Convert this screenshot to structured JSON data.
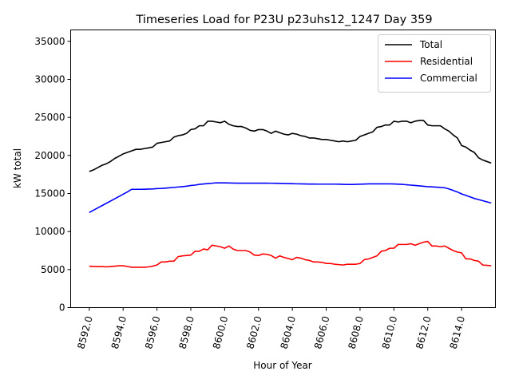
{
  "chart_data": {
    "type": "line",
    "title": "Timeseries Load for P23U p23uhs12_1247  Day 359",
    "xlabel": "Hour of Year",
    "ylabel": "kW total",
    "xlim": [
      8590.9,
      8616.0
    ],
    "ylim": [
      0,
      36500
    ],
    "xticks": [
      8592,
      8594,
      8596,
      8598,
      8600,
      8602,
      8604,
      8606,
      8608,
      8610,
      8612,
      8614
    ],
    "xtick_labels": [
      "8592.0",
      "8594.0",
      "8596.0",
      "8598.0",
      "8600.0",
      "8602.0",
      "8604.0",
      "8606.0",
      "8608.0",
      "8610.0",
      "8612.0",
      "8614.0"
    ],
    "yticks": [
      0,
      5000,
      10000,
      15000,
      20000,
      25000,
      30000,
      35000
    ],
    "ytick_labels": [
      "0",
      "5000",
      "10000",
      "15000",
      "20000",
      "25000",
      "30000",
      "35000"
    ],
    "legend_position": "top-right",
    "x": [
      8592.0,
      8592.25,
      8592.5,
      8592.75,
      8593.0,
      8593.25,
      8593.5,
      8593.75,
      8594.0,
      8594.25,
      8594.5,
      8594.75,
      8595.0,
      8595.25,
      8595.5,
      8595.75,
      8596.0,
      8596.25,
      8596.5,
      8596.75,
      8597.0,
      8597.25,
      8597.5,
      8597.75,
      8598.0,
      8598.25,
      8598.5,
      8598.75,
      8599.0,
      8599.25,
      8599.5,
      8599.75,
      8600.0,
      8600.25,
      8600.5,
      8600.75,
      8601.0,
      8601.25,
      8601.5,
      8601.75,
      8602.0,
      8602.25,
      8602.5,
      8602.75,
      8603.0,
      8603.25,
      8603.5,
      8603.75,
      8604.0,
      8604.25,
      8604.5,
      8604.75,
      8605.0,
      8605.25,
      8605.5,
      8605.75,
      8606.0,
      8606.25,
      8606.5,
      8606.75,
      8607.0,
      8607.25,
      8607.5,
      8607.75,
      8608.0,
      8608.25,
      8608.5,
      8608.75,
      8609.0,
      8609.25,
      8609.5,
      8609.75,
      8610.0,
      8610.25,
      8610.5,
      8610.75,
      8611.0,
      8611.25,
      8611.5,
      8611.75,
      8612.0,
      8612.25,
      8612.5,
      8612.75,
      8613.0,
      8613.25,
      8613.5,
      8613.75,
      8614.0,
      8614.25,
      8614.5,
      8614.75,
      8615.0,
      8615.25,
      8615.5,
      8615.75
    ],
    "series": [
      {
        "name": "Total",
        "color": "#000000",
        "values": [
          17900,
          18100,
          18400,
          18700,
          18900,
          19200,
          19600,
          19900,
          20200,
          20400,
          20600,
          20800,
          20800,
          20900,
          21000,
          21100,
          21600,
          21700,
          21800,
          21900,
          22400,
          22600,
          22700,
          22900,
          23400,
          23500,
          23900,
          23900,
          24500,
          24500,
          24400,
          24300,
          24500,
          24100,
          23900,
          23800,
          23800,
          23600,
          23300,
          23200,
          23400,
          23400,
          23200,
          22900,
          23200,
          23000,
          22800,
          22700,
          22900,
          22800,
          22600,
          22500,
          22300,
          22300,
          22200,
          22100,
          22100,
          22000,
          21900,
          21800,
          21900,
          21800,
          21900,
          22000,
          22500,
          22700,
          22900,
          23100,
          23700,
          23800,
          24000,
          24000,
          24500,
          24400,
          24500,
          24500,
          24300,
          24500,
          24600,
          24600,
          24000,
          23900,
          23900,
          23900,
          23500,
          23200,
          22700,
          22300,
          21300,
          21100,
          20700,
          20400,
          19700,
          19400,
          19200,
          19000
        ]
      },
      {
        "name": "Residential",
        "color": "#ff0000",
        "values": [
          5450,
          5400,
          5400,
          5400,
          5350,
          5400,
          5450,
          5500,
          5500,
          5400,
          5300,
          5300,
          5300,
          5300,
          5350,
          5450,
          5600,
          6000,
          6000,
          6100,
          6100,
          6700,
          6800,
          6850,
          6900,
          7400,
          7400,
          7700,
          7600,
          8200,
          8100,
          8000,
          7800,
          8100,
          7700,
          7500,
          7500,
          7500,
          7300,
          6900,
          6850,
          7050,
          7000,
          6850,
          6500,
          6800,
          6600,
          6450,
          6300,
          6600,
          6500,
          6300,
          6200,
          6000,
          6000,
          5950,
          5800,
          5800,
          5700,
          5650,
          5600,
          5700,
          5700,
          5700,
          5800,
          6300,
          6400,
          6600,
          6800,
          7400,
          7500,
          7800,
          7800,
          8300,
          8300,
          8300,
          8400,
          8200,
          8400,
          8600,
          8700,
          8100,
          8100,
          8000,
          8100,
          7800,
          7500,
          7300,
          7200,
          6400,
          6400,
          6200,
          6100,
          5600,
          5550,
          5500
        ]
      },
      {
        "name": "Commercial",
        "color": "#0000ff",
        "values": [
          12500,
          12800,
          13100,
          13400,
          13700,
          14000,
          14300,
          14600,
          14900,
          15200,
          15550,
          15550,
          15550,
          15560,
          15580,
          15600,
          15650,
          15660,
          15700,
          15750,
          15800,
          15850,
          15900,
          15960,
          16050,
          16100,
          16200,
          16250,
          16300,
          16350,
          16400,
          16400,
          16400,
          16380,
          16370,
          16360,
          16360,
          16360,
          16360,
          16360,
          16360,
          16360,
          16360,
          16350,
          16340,
          16330,
          16320,
          16300,
          16290,
          16270,
          16260,
          16250,
          16240,
          16240,
          16230,
          16230,
          16230,
          16230,
          16230,
          16220,
          16200,
          16190,
          16190,
          16200,
          16220,
          16240,
          16260,
          16260,
          16260,
          16260,
          16260,
          16260,
          16250,
          16220,
          16200,
          16150,
          16100,
          16050,
          16000,
          15950,
          15900,
          15870,
          15830,
          15800,
          15750,
          15600,
          15400,
          15200,
          14950,
          14750,
          14550,
          14350,
          14200,
          14050,
          13900,
          13750
        ]
      }
    ]
  }
}
